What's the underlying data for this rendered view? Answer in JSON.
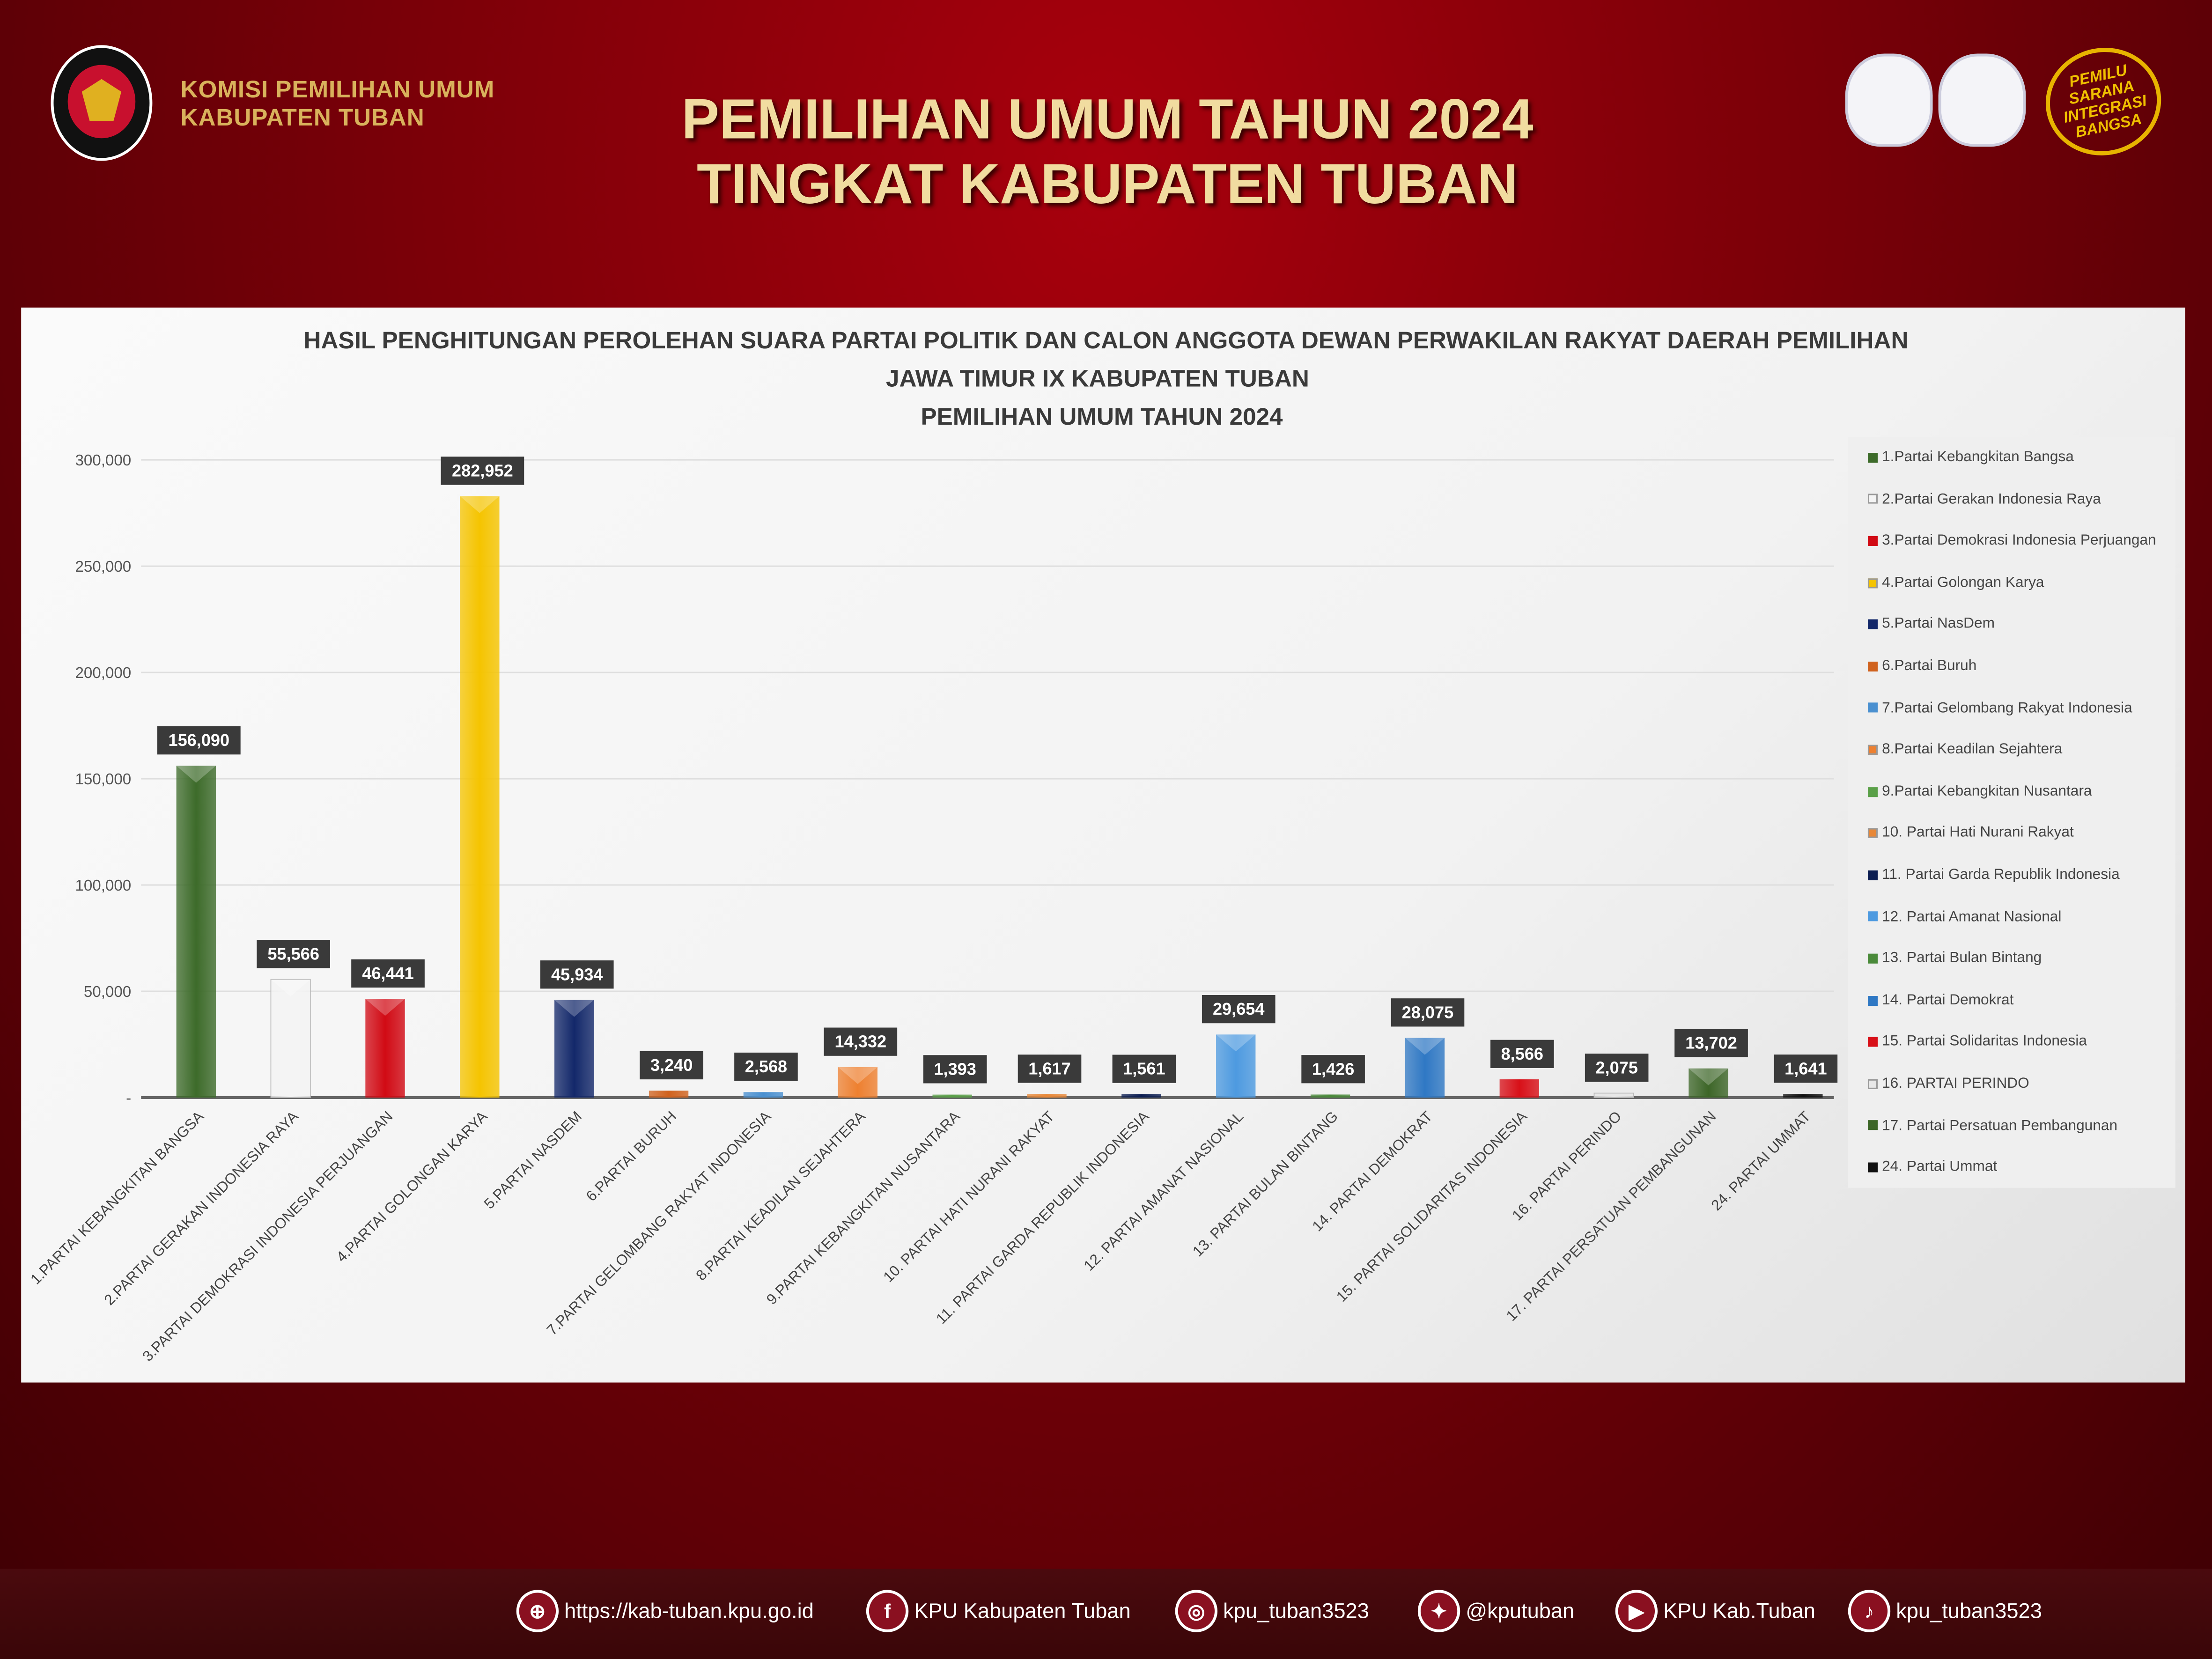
{
  "header": {
    "org_line1": "KOMISI PEMILIHAN UMUM",
    "org_line2": "KABUPATEN TUBAN",
    "title_line1": "PEMILIHAN UMUM TAHUN 2024",
    "title_line2": "TINGKAT KABUPATEN TUBAN",
    "kpu_logo_text": "KOMISI PEMILIHAN UMUM",
    "emblem_text": "PEMILU SARANA INTEGRASI BANGSA"
  },
  "chart_data": {
    "type": "bar",
    "title_lines": [
      "HASIL PENGHITUNGAN PEROLEHAN SUARA PARTAI POLITIK DAN CALON ANGGOTA DEWAN PERWAKILAN RAKYAT  DAERAH PEMILIHAN",
      "JAWA TIMUR IX KABUPATEN TUBAN",
      "PEMILIHAN UMUM TAHUN 2024"
    ],
    "ylim": [
      0,
      300000
    ],
    "yticks": [
      0,
      50000,
      100000,
      150000,
      200000,
      250000,
      300000
    ],
    "ytick_labels": [
      "-",
      "50,000",
      "100,000",
      "150,000",
      "200,000",
      "250,000",
      "300,000"
    ],
    "grid": true,
    "legend_position": "right",
    "categories": [
      "1.PARTAI KEBANGKITAN BANGSA",
      "2.PARTAI GERAKAN INDONESIA RAYA",
      "3.PARTAI DEMOKRASI INDONESIA PERJUANGAN",
      "4.PARTAI GOLONGAN KARYA",
      "5.PARTAI NASDEM",
      "6.PARTAI BURUH",
      "7.PARTAI GELOMBANG RAKYAT INDONESIA",
      "8.PARTAI KEADILAN SEJAHTERA",
      "9.PARTAI KEBANGKITAN NUSANTARA",
      "10. PARTAI HATI NURANI RAKYAT",
      "11. PARTAI GARDA REPUBLIK INDONESIA",
      "12. PARTAI AMANAT NASIONAL",
      "13. PARTAI BULAN BINTANG",
      "14. PARTAI DEMOKRAT",
      "15. PARTAI SOLIDARITAS INDONESIA",
      "16. PARTAI PERINDO",
      "17. PARTAI PERSATUAN PEMBANGUNAN",
      "24. PARTAI UMMAT"
    ],
    "legend": [
      "1.Partai Kebangkitan Bangsa",
      "2.Partai Gerakan Indonesia Raya",
      "3.Partai Demokrasi Indonesia Perjuangan",
      "4.Partai Golongan Karya",
      "5.Partai NasDem",
      "6.Partai Buruh",
      "7.Partai Gelombang Rakyat Indonesia",
      "8.Partai Keadilan Sejahtera",
      "9.Partai Kebangkitan Nusantara",
      "10.  Partai Hati Nurani Rakyat",
      "11. Partai Garda Republik Indonesia",
      "12. Partai Amanat Nasional",
      "13. Partai Bulan Bintang",
      "14. Partai Demokrat",
      "15. Partai Solidaritas Indonesia",
      "16. PARTAI PERINDO",
      "17. Partai Persatuan Pembangunan",
      "24. Partai Ummat"
    ],
    "values": [
      156090,
      55566,
      46441,
      282952,
      45934,
      3240,
      2568,
      14332,
      1393,
      1617,
      1561,
      29654,
      1426,
      28075,
      8566,
      2075,
      13702,
      1641
    ],
    "value_labels": [
      "156,090",
      "55,566",
      "46,441",
      "282,952",
      "45,934",
      "3,240",
      "2,568",
      "14,332",
      "1,393",
      "1,617",
      "1,561",
      "29,654",
      "1,426",
      "28,075",
      "8,566",
      "2,075",
      "13,702",
      "1,641"
    ],
    "colors": [
      "#3d6b2a",
      "#f4f4f4",
      "#d10a14",
      "#f5c400",
      "#13286a",
      "#d0621e",
      "#4a90d0",
      "#ee8030",
      "#5aa048",
      "#e88838",
      "#0c1e52",
      "#4d9ae0",
      "#4a8a3a",
      "#2f78c4",
      "#d81018",
      "#e8e8e8",
      "#3d6628",
      "#111111"
    ]
  },
  "footer": [
    {
      "icon": "globe-icon",
      "glyph": "⊕",
      "text": "https://kab-tuban.kpu.go.id"
    },
    {
      "icon": "facebook-icon",
      "glyph": "f",
      "text": "KPU Kabupaten Tuban"
    },
    {
      "icon": "instagram-icon",
      "glyph": "◎",
      "text": "kpu_tuban3523"
    },
    {
      "icon": "twitter-icon",
      "glyph": "✦",
      "text": "@kputuban"
    },
    {
      "icon": "youtube-icon",
      "glyph": "▶",
      "text": "KPU Kab.Tuban"
    },
    {
      "icon": "tiktok-icon",
      "glyph": "♪",
      "text": "kpu_tuban3523"
    }
  ]
}
